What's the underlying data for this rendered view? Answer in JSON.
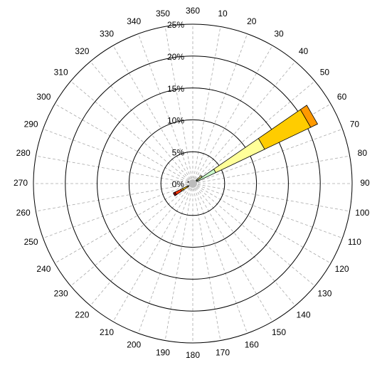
{
  "chart_data": {
    "type": "windrose",
    "directions": [
      10,
      20,
      30,
      40,
      50,
      60,
      70,
      80,
      90,
      100,
      110,
      120,
      130,
      140,
      150,
      160,
      170,
      180,
      190,
      200,
      210,
      220,
      230,
      240,
      250,
      260,
      270,
      280,
      290,
      300,
      310,
      320,
      330,
      340,
      350,
      360
    ],
    "rlim": [
      0,
      25
    ],
    "rticks": [
      {
        "value": 0,
        "label": "0%"
      },
      {
        "value": 5,
        "label": "5%"
      },
      {
        "value": 10,
        "label": "10%"
      },
      {
        "value": 15,
        "label": "15%"
      },
      {
        "value": 20,
        "label": "20%"
      },
      {
        "value": 25,
        "label": "25%"
      }
    ],
    "series": [
      {
        "color": "#ccffcc",
        "values": [
          0,
          0,
          0,
          0,
          0.8,
          4,
          0.6,
          0,
          0,
          0,
          0,
          0,
          0,
          0,
          0,
          0,
          0,
          0,
          0,
          0,
          0,
          0,
          0,
          0.3,
          0,
          0,
          0,
          0,
          0,
          0,
          0,
          0,
          0,
          0,
          0,
          0
        ]
      },
      {
        "color": "#ffff99",
        "values": [
          0,
          0,
          0,
          0,
          1,
          8.5,
          0,
          0,
          0,
          0,
          0,
          0,
          0,
          0,
          0,
          0,
          0,
          0,
          0,
          0,
          0,
          0,
          0,
          0.6,
          0,
          0,
          0,
          0,
          0,
          0,
          0,
          0,
          0,
          0,
          0,
          0
        ]
      },
      {
        "color": "#ffcc00",
        "values": [
          0,
          0,
          0,
          0,
          0,
          8,
          0,
          0,
          0,
          0,
          0,
          0,
          0,
          0,
          0,
          0,
          0,
          0,
          0,
          0,
          0,
          0,
          0,
          0.9,
          0,
          0,
          0,
          0,
          0,
          0,
          0,
          0,
          0,
          0,
          0,
          0
        ]
      },
      {
        "color": "#ff9900",
        "values": [
          0,
          0,
          0,
          0,
          0,
          1.2,
          0,
          0,
          0,
          0,
          0,
          0,
          0,
          0,
          0,
          0,
          0,
          0,
          0,
          0,
          0,
          0,
          0,
          0.3,
          0,
          0,
          0,
          0,
          0,
          0,
          0,
          0,
          0,
          0,
          0,
          0
        ]
      },
      {
        "color": "#ff3300",
        "values": [
          0,
          0,
          0,
          0,
          0,
          0,
          0,
          0,
          0,
          0,
          0,
          0,
          0,
          0,
          0,
          0,
          0,
          0,
          0,
          0,
          0,
          0,
          0,
          1,
          0,
          0,
          0,
          0,
          0.5,
          0,
          0,
          0,
          0,
          0,
          0,
          0
        ]
      },
      {
        "color": "#990000",
        "values": [
          0,
          0,
          0,
          0,
          0,
          0,
          0,
          0,
          0,
          0,
          0,
          0,
          0,
          0,
          0,
          0,
          0,
          0,
          0,
          0,
          0,
          0,
          0,
          0.3,
          0,
          0,
          0,
          0,
          0.3,
          0,
          0,
          0,
          0,
          0,
          0,
          0
        ]
      }
    ]
  }
}
